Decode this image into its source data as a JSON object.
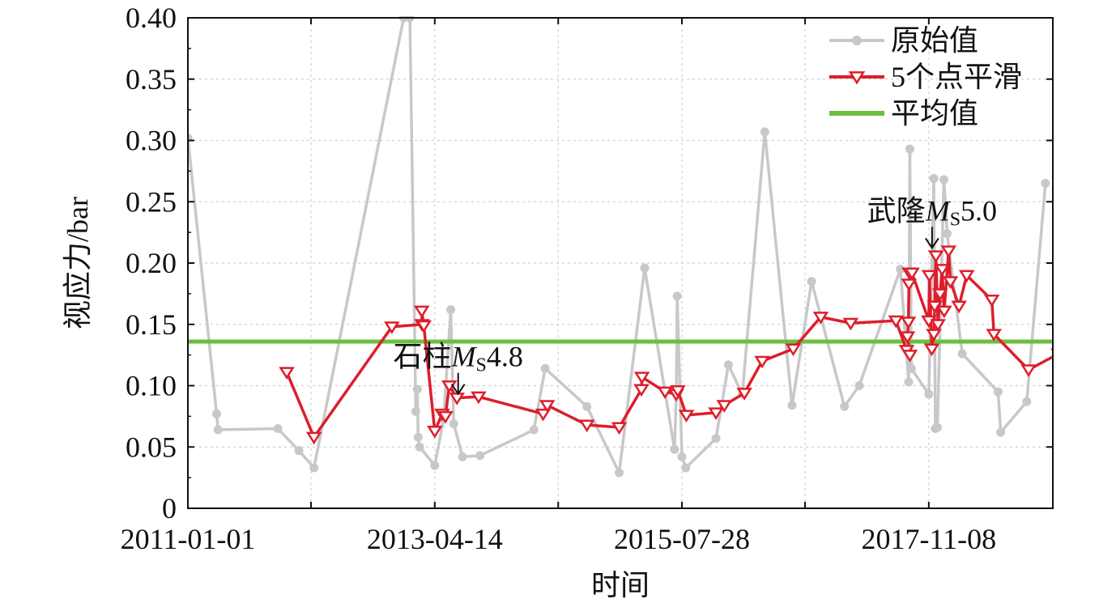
{
  "chart_data": {
    "type": "line",
    "xlabel": "时间",
    "ylabel": "视应力/bar",
    "x_tick_labels": [
      "2011-01-01",
      "2013-04-14",
      "2015-07-28",
      "2017-11-08"
    ],
    "xlim": [
      "2011-01-01",
      "2019-01-01"
    ],
    "x_minor_ticks": [
      "2012-02-21",
      "2014-06-05",
      "2016-09-16"
    ],
    "y_tick_labels": [
      "0",
      "0.05",
      "0.10",
      "0.15",
      "0.20",
      "0.25",
      "0.30",
      "0.35",
      "0.40"
    ],
    "ylim": [
      0,
      0.4
    ],
    "grid": true,
    "legend_position": "top-right",
    "colors": {
      "raw": "#c8c8c8",
      "smooth": "#dd1e2b",
      "mean": "#6bbf3f"
    },
    "series": [
      {
        "name": "原始值",
        "marker": "circle",
        "points": [
          [
            "2011-01-01",
            0.302
          ],
          [
            "2011-04-08",
            0.077
          ],
          [
            "2011-04-13",
            0.064
          ],
          [
            "2011-11-01",
            0.065
          ],
          [
            "2012-01-11",
            0.047
          ],
          [
            "2012-03-02",
            0.033
          ],
          [
            "2012-12-30",
            0.4
          ],
          [
            "2013-01-20",
            0.4
          ],
          [
            "2013-02-09",
            0.079
          ],
          [
            "2013-02-14",
            0.097
          ],
          [
            "2013-02-17",
            0.058
          ],
          [
            "2013-02-22",
            0.05
          ],
          [
            "2013-04-14",
            0.035
          ],
          [
            "2013-05-14",
            0.073
          ],
          [
            "2013-06-07",
            0.162
          ],
          [
            "2013-06-17",
            0.069
          ],
          [
            "2013-07-17",
            0.042
          ],
          [
            "2013-09-14",
            0.043
          ],
          [
            "2014-03-15",
            0.064
          ],
          [
            "2014-04-22",
            0.114
          ],
          [
            "2014-09-10",
            0.083
          ],
          [
            "2014-12-28",
            0.029
          ],
          [
            "2015-03-24",
            0.196
          ],
          [
            "2015-07-03",
            0.048
          ],
          [
            "2015-07-09",
            0.093
          ],
          [
            "2015-07-12",
            0.173
          ],
          [
            "2015-07-28",
            0.042
          ],
          [
            "2015-08-10",
            0.033
          ],
          [
            "2015-11-20",
            0.057
          ],
          [
            "2016-01-01",
            0.117
          ],
          [
            "2016-02-17",
            0.093
          ],
          [
            "2016-05-03",
            0.307
          ],
          [
            "2016-08-03",
            0.084
          ],
          [
            "2016-10-08",
            0.185
          ],
          [
            "2017-01-27",
            0.083
          ],
          [
            "2017-03-18",
            0.1
          ],
          [
            "2017-08-04",
            0.195
          ],
          [
            "2017-09-01",
            0.103
          ],
          [
            "2017-09-05",
            0.293
          ],
          [
            "2017-09-10",
            0.114
          ],
          [
            "2017-11-08",
            0.093
          ],
          [
            "2017-11-25",
            0.269
          ],
          [
            "2017-11-30",
            0.065
          ],
          [
            "2017-12-07",
            0.066
          ],
          [
            "2017-12-29",
            0.268
          ],
          [
            "2018-01-09",
            0.224
          ],
          [
            "2018-03-01",
            0.126
          ],
          [
            "2018-06-30",
            0.095
          ],
          [
            "2018-07-09",
            0.062
          ],
          [
            "2018-10-05",
            0.087
          ],
          [
            "2018-12-07",
            0.265
          ]
        ]
      },
      {
        "name": "5个点平滑",
        "marker": "triangle-down",
        "points": [
          [
            "2011-12-01",
            0.111
          ],
          [
            "2012-03-02",
            0.058
          ],
          [
            "2012-11-20",
            0.148
          ],
          [
            "2013-03-02",
            0.15
          ],
          [
            "2013-03-01",
            0.161
          ],
          [
            "2013-03-08",
            0.149
          ],
          [
            "2013-04-14",
            0.063
          ],
          [
            "2013-05-09",
            0.077
          ],
          [
            "2013-05-20",
            0.075
          ],
          [
            "2013-06-02",
            0.1
          ],
          [
            "2013-06-28",
            0.09
          ],
          [
            "2013-09-09",
            0.091
          ],
          [
            "2014-04-15",
            0.077
          ],
          [
            "2014-04-29",
            0.084
          ],
          [
            "2014-09-10",
            0.068
          ],
          [
            "2014-12-28",
            0.066
          ],
          [
            "2015-03-13",
            0.097
          ],
          [
            "2015-03-15",
            0.107
          ],
          [
            "2015-06-01",
            0.095
          ],
          [
            "2015-07-09",
            0.093
          ],
          [
            "2015-07-14",
            0.096
          ],
          [
            "2015-08-12",
            0.076
          ],
          [
            "2015-11-20",
            0.078
          ],
          [
            "2015-12-18",
            0.084
          ],
          [
            "2016-02-24",
            0.094
          ],
          [
            "2016-04-24",
            0.12
          ],
          [
            "2016-08-07",
            0.13
          ],
          [
            "2016-11-08",
            0.156
          ],
          [
            "2017-02-17",
            0.151
          ],
          [
            "2017-07-20",
            0.153
          ],
          [
            "2017-08-25",
            0.129
          ],
          [
            "2017-09-05",
            0.125
          ],
          [
            "2017-08-28",
            0.14
          ],
          [
            "2017-08-31",
            0.152
          ],
          [
            "2017-09-02",
            0.183
          ],
          [
            "2017-09-04",
            0.192
          ],
          [
            "2017-09-12",
            0.192
          ],
          [
            "2017-11-08",
            0.153
          ],
          [
            "2017-11-10",
            0.19
          ],
          [
            "2017-11-18",
            0.13
          ],
          [
            "2017-11-25",
            0.142
          ],
          [
            "2017-11-28",
            0.165
          ],
          [
            "2017-12-02",
            0.206
          ],
          [
            "2017-12-09",
            0.15
          ],
          [
            "2017-12-16",
            0.175
          ],
          [
            "2017-12-23",
            0.195
          ],
          [
            "2017-12-30",
            0.161
          ],
          [
            "2018-01-14",
            0.21
          ],
          [
            "2018-01-20",
            0.185
          ],
          [
            "2018-02-18",
            0.165
          ],
          [
            "2018-03-16",
            0.19
          ],
          [
            "2018-06-09",
            0.17
          ],
          [
            "2018-06-16",
            0.142
          ],
          [
            "2018-10-11",
            0.113
          ],
          [
            "2019-01-20",
            0.126
          ]
        ]
      },
      {
        "name": "平均值",
        "marker": "none",
        "value": 0.136
      }
    ],
    "annotations": [
      {
        "prefix": "石柱",
        "italic": "M",
        "sub": "S",
        "suffix": "4.8",
        "date": "2013-07-02",
        "value": 0.092,
        "text_side": "above"
      },
      {
        "prefix": "武隆",
        "italic": "M",
        "sub": "S",
        "suffix": "5.0",
        "date": "2017-11-19",
        "value": 0.211,
        "text_side": "above"
      }
    ]
  }
}
